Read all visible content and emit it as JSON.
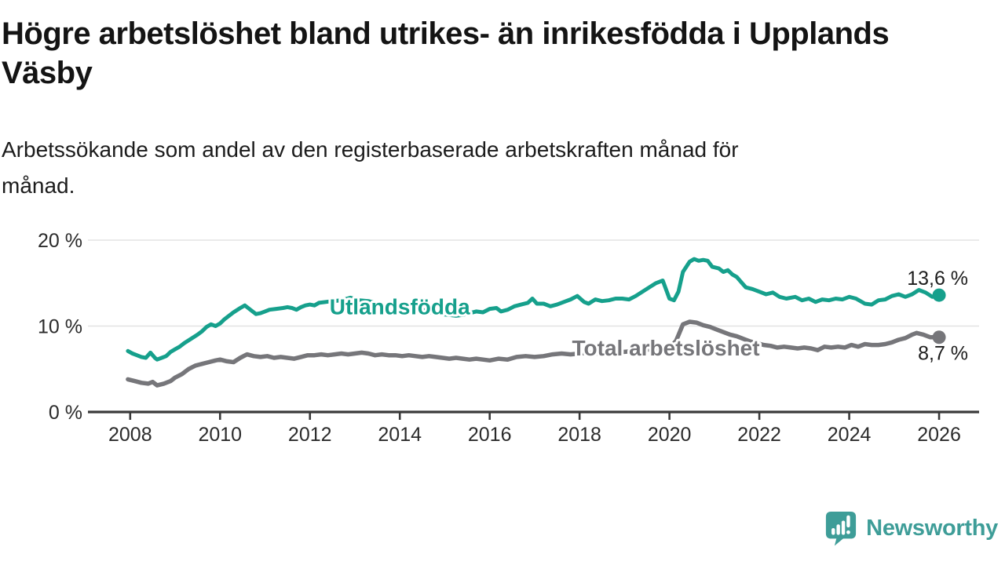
{
  "header": {
    "title": "Högre arbetslöshet bland utrikes- än inrikesfödda i Upplands\nVäsby",
    "subtitle": "Arbetssökande som andel av den registerbaserade arbetskraften månad för\nmånad."
  },
  "footer": {
    "brand": "Newsworthy",
    "brand_icon": "newsworthy-speech-bubble-bar-chart-icon",
    "brand_color": "#3E9D98"
  },
  "chart_data": {
    "type": "line",
    "title": "Högre arbetslöshet bland utrikes- än inrikesfödda i Upplands Väsby",
    "subtitle": "Arbetssökande som andel av den registerbaserade arbetskraften månad för månad.",
    "grid": "horizontal",
    "legend_position": "inline-labels",
    "colors": {
      "gridline": "#e3e3e3",
      "axis": "#3a3a3a",
      "axis_text": "#2b2b2b",
      "end_label_text": "#1d1d1d"
    },
    "x_axis": {
      "range": [
        2007.06,
        2026.89
      ],
      "ticks": [
        {
          "value": 2008,
          "label": "2008"
        },
        {
          "value": 2010,
          "label": "2010"
        },
        {
          "value": 2012,
          "label": "2012"
        },
        {
          "value": 2014,
          "label": "2014"
        },
        {
          "value": 2016,
          "label": "2016"
        },
        {
          "value": 2018,
          "label": "2018"
        },
        {
          "value": 2020,
          "label": "2020"
        },
        {
          "value": 2022,
          "label": "2022"
        },
        {
          "value": 2024,
          "label": "2024"
        },
        {
          "value": 2026,
          "label": "2026"
        }
      ]
    },
    "y_axis": {
      "range": [
        0,
        22.4
      ],
      "unit": "%",
      "ticks": [
        {
          "value": 0,
          "label": "0 %"
        },
        {
          "value": 10,
          "label": "10 %"
        },
        {
          "value": 20,
          "label": "20 %"
        }
      ]
    },
    "series": [
      {
        "name": "Total arbetslöshet",
        "color": "#76767a",
        "line_width": 5.5,
        "label_anchor": {
          "year": 2019.92,
          "value": 7.5
        },
        "end_label": "8,7 %",
        "end_label_side": "below",
        "points": [
          [
            2007.95,
            3.8
          ],
          [
            2008.1,
            3.6
          ],
          [
            2008.25,
            3.4
          ],
          [
            2008.4,
            3.3
          ],
          [
            2008.5,
            3.5
          ],
          [
            2008.6,
            3.1
          ],
          [
            2008.75,
            3.3
          ],
          [
            2008.9,
            3.6
          ],
          [
            2009.0,
            4.0
          ],
          [
            2009.15,
            4.4
          ],
          [
            2009.3,
            5.0
          ],
          [
            2009.45,
            5.4
          ],
          [
            2009.6,
            5.6
          ],
          [
            2009.75,
            5.8
          ],
          [
            2009.9,
            6.0
          ],
          [
            2010.0,
            6.1
          ],
          [
            2010.15,
            5.9
          ],
          [
            2010.3,
            5.8
          ],
          [
            2010.45,
            6.3
          ],
          [
            2010.6,
            6.7
          ],
          [
            2010.75,
            6.5
          ],
          [
            2010.9,
            6.4
          ],
          [
            2011.05,
            6.5
          ],
          [
            2011.2,
            6.3
          ],
          [
            2011.35,
            6.4
          ],
          [
            2011.5,
            6.3
          ],
          [
            2011.65,
            6.2
          ],
          [
            2011.8,
            6.4
          ],
          [
            2011.95,
            6.6
          ],
          [
            2012.1,
            6.6
          ],
          [
            2012.25,
            6.7
          ],
          [
            2012.4,
            6.6
          ],
          [
            2012.55,
            6.7
          ],
          [
            2012.7,
            6.8
          ],
          [
            2012.85,
            6.7
          ],
          [
            2013.0,
            6.8
          ],
          [
            2013.15,
            6.9
          ],
          [
            2013.3,
            6.8
          ],
          [
            2013.45,
            6.6
          ],
          [
            2013.6,
            6.7
          ],
          [
            2013.75,
            6.6
          ],
          [
            2013.9,
            6.6
          ],
          [
            2014.05,
            6.5
          ],
          [
            2014.2,
            6.6
          ],
          [
            2014.35,
            6.5
          ],
          [
            2014.5,
            6.4
          ],
          [
            2014.65,
            6.5
          ],
          [
            2014.8,
            6.4
          ],
          [
            2014.95,
            6.3
          ],
          [
            2015.1,
            6.2
          ],
          [
            2015.25,
            6.3
          ],
          [
            2015.4,
            6.2
          ],
          [
            2015.55,
            6.1
          ],
          [
            2015.7,
            6.2
          ],
          [
            2015.85,
            6.1
          ],
          [
            2016.0,
            6.0
          ],
          [
            2016.2,
            6.2
          ],
          [
            2016.4,
            6.1
          ],
          [
            2016.6,
            6.4
          ],
          [
            2016.8,
            6.5
          ],
          [
            2017.0,
            6.4
          ],
          [
            2017.2,
            6.5
          ],
          [
            2017.4,
            6.7
          ],
          [
            2017.6,
            6.8
          ],
          [
            2017.8,
            6.7
          ],
          [
            2018.0,
            6.8
          ],
          [
            2018.2,
            6.9
          ],
          [
            2018.4,
            6.8
          ],
          [
            2018.6,
            6.9
          ],
          [
            2018.8,
            7.0
          ],
          [
            2019.0,
            7.0
          ],
          [
            2019.2,
            7.1
          ],
          [
            2019.4,
            7.2
          ],
          [
            2019.6,
            7.3
          ],
          [
            2019.8,
            7.3
          ],
          [
            2020.0,
            7.4
          ],
          [
            2020.15,
            8.3
          ],
          [
            2020.3,
            10.2
          ],
          [
            2020.45,
            10.5
          ],
          [
            2020.6,
            10.4
          ],
          [
            2020.75,
            10.1
          ],
          [
            2020.9,
            9.9
          ],
          [
            2021.05,
            9.6
          ],
          [
            2021.2,
            9.3
          ],
          [
            2021.35,
            9.0
          ],
          [
            2021.5,
            8.8
          ],
          [
            2021.65,
            8.5
          ],
          [
            2021.8,
            8.2
          ],
          [
            2021.95,
            8.0
          ],
          [
            2022.1,
            7.8
          ],
          [
            2022.25,
            7.7
          ],
          [
            2022.4,
            7.5
          ],
          [
            2022.55,
            7.6
          ],
          [
            2022.7,
            7.5
          ],
          [
            2022.85,
            7.4
          ],
          [
            2023.0,
            7.5
          ],
          [
            2023.15,
            7.4
          ],
          [
            2023.3,
            7.2
          ],
          [
            2023.45,
            7.6
          ],
          [
            2023.6,
            7.5
          ],
          [
            2023.75,
            7.6
          ],
          [
            2023.9,
            7.5
          ],
          [
            2024.05,
            7.8
          ],
          [
            2024.2,
            7.6
          ],
          [
            2024.35,
            7.9
          ],
          [
            2024.5,
            7.8
          ],
          [
            2024.65,
            7.8
          ],
          [
            2024.8,
            7.9
          ],
          [
            2024.95,
            8.1
          ],
          [
            2025.1,
            8.4
          ],
          [
            2025.25,
            8.6
          ],
          [
            2025.4,
            9.0
          ],
          [
            2025.5,
            9.2
          ],
          [
            2025.65,
            9.0
          ],
          [
            2025.8,
            8.7
          ],
          [
            2026.0,
            8.7
          ]
        ]
      },
      {
        "name": "Utlandsfödda",
        "color": "#16a08c",
        "line_width": 5,
        "label_anchor": {
          "year": 2014.0,
          "value": 12.3
        },
        "end_label": "13,6 %",
        "end_label_side": "above",
        "points": [
          [
            2007.95,
            7.1
          ],
          [
            2008.05,
            6.8
          ],
          [
            2008.15,
            6.6
          ],
          [
            2008.25,
            6.4
          ],
          [
            2008.35,
            6.3
          ],
          [
            2008.45,
            6.9
          ],
          [
            2008.55,
            6.3
          ],
          [
            2008.6,
            6.1
          ],
          [
            2008.7,
            6.3
          ],
          [
            2008.8,
            6.5
          ],
          [
            2008.9,
            7.0
          ],
          [
            2009.0,
            7.3
          ],
          [
            2009.1,
            7.6
          ],
          [
            2009.2,
            8.0
          ],
          [
            2009.35,
            8.5
          ],
          [
            2009.5,
            9.0
          ],
          [
            2009.6,
            9.4
          ],
          [
            2009.7,
            9.9
          ],
          [
            2009.8,
            10.2
          ],
          [
            2009.9,
            10.0
          ],
          [
            2010.0,
            10.3
          ],
          [
            2010.1,
            10.8
          ],
          [
            2010.2,
            11.2
          ],
          [
            2010.3,
            11.6
          ],
          [
            2010.45,
            12.1
          ],
          [
            2010.55,
            12.4
          ],
          [
            2010.7,
            11.8
          ],
          [
            2010.8,
            11.4
          ],
          [
            2010.9,
            11.5
          ],
          [
            2011.0,
            11.7
          ],
          [
            2011.1,
            11.9
          ],
          [
            2011.25,
            12.0
          ],
          [
            2011.4,
            12.1
          ],
          [
            2011.5,
            12.2
          ],
          [
            2011.6,
            12.1
          ],
          [
            2011.7,
            11.9
          ],
          [
            2011.8,
            12.2
          ],
          [
            2011.9,
            12.4
          ],
          [
            2012.0,
            12.5
          ],
          [
            2012.1,
            12.4
          ],
          [
            2012.2,
            12.7
          ],
          [
            2012.35,
            12.8
          ],
          [
            2012.5,
            12.9
          ],
          [
            2012.7,
            13.0
          ],
          [
            2012.9,
            13.3
          ],
          [
            2013.1,
            13.0
          ],
          [
            2013.3,
            12.9
          ],
          [
            2013.5,
            12.6
          ],
          [
            2013.7,
            12.4
          ],
          [
            2013.9,
            12.3
          ],
          [
            2014.1,
            12.2
          ],
          [
            2014.3,
            12.0
          ],
          [
            2014.5,
            11.9
          ],
          [
            2014.7,
            11.6
          ],
          [
            2014.9,
            11.4
          ],
          [
            2015.1,
            11.3
          ],
          [
            2015.25,
            11.2
          ],
          [
            2015.4,
            11.3
          ],
          [
            2015.55,
            11.5
          ],
          [
            2015.7,
            11.7
          ],
          [
            2015.85,
            11.6
          ],
          [
            2016.0,
            12.0
          ],
          [
            2016.15,
            12.1
          ],
          [
            2016.25,
            11.7
          ],
          [
            2016.4,
            11.9
          ],
          [
            2016.55,
            12.3
          ],
          [
            2016.7,
            12.5
          ],
          [
            2016.85,
            12.7
          ],
          [
            2016.95,
            13.2
          ],
          [
            2017.05,
            12.6
          ],
          [
            2017.2,
            12.6
          ],
          [
            2017.35,
            12.3
          ],
          [
            2017.5,
            12.5
          ],
          [
            2017.65,
            12.8
          ],
          [
            2017.8,
            13.1
          ],
          [
            2017.95,
            13.5
          ],
          [
            2018.1,
            12.8
          ],
          [
            2018.2,
            12.6
          ],
          [
            2018.35,
            13.1
          ],
          [
            2018.5,
            12.9
          ],
          [
            2018.65,
            13.0
          ],
          [
            2018.8,
            13.2
          ],
          [
            2018.95,
            13.2
          ],
          [
            2019.1,
            13.1
          ],
          [
            2019.25,
            13.5
          ],
          [
            2019.4,
            14.0
          ],
          [
            2019.55,
            14.5
          ],
          [
            2019.7,
            15.0
          ],
          [
            2019.85,
            15.3
          ],
          [
            2020.0,
            13.2
          ],
          [
            2020.1,
            13.0
          ],
          [
            2020.2,
            14.0
          ],
          [
            2020.3,
            16.3
          ],
          [
            2020.45,
            17.5
          ],
          [
            2020.55,
            17.8
          ],
          [
            2020.65,
            17.6
          ],
          [
            2020.75,
            17.7
          ],
          [
            2020.85,
            17.6
          ],
          [
            2020.95,
            16.9
          ],
          [
            2021.1,
            16.7
          ],
          [
            2021.2,
            16.3
          ],
          [
            2021.3,
            16.5
          ],
          [
            2021.4,
            16.0
          ],
          [
            2021.5,
            15.7
          ],
          [
            2021.6,
            15.1
          ],
          [
            2021.7,
            14.5
          ],
          [
            2021.85,
            14.3
          ],
          [
            2022.0,
            14.0
          ],
          [
            2022.15,
            13.7
          ],
          [
            2022.3,
            13.9
          ],
          [
            2022.45,
            13.4
          ],
          [
            2022.6,
            13.2
          ],
          [
            2022.8,
            13.4
          ],
          [
            2022.95,
            13.0
          ],
          [
            2023.1,
            13.2
          ],
          [
            2023.25,
            12.8
          ],
          [
            2023.4,
            13.1
          ],
          [
            2023.55,
            13.0
          ],
          [
            2023.7,
            13.2
          ],
          [
            2023.85,
            13.1
          ],
          [
            2024.0,
            13.4
          ],
          [
            2024.15,
            13.2
          ],
          [
            2024.35,
            12.6
          ],
          [
            2024.5,
            12.5
          ],
          [
            2024.65,
            13.0
          ],
          [
            2024.8,
            13.1
          ],
          [
            2024.95,
            13.5
          ],
          [
            2025.1,
            13.7
          ],
          [
            2025.25,
            13.4
          ],
          [
            2025.4,
            13.7
          ],
          [
            2025.55,
            14.2
          ],
          [
            2025.7,
            13.9
          ],
          [
            2025.85,
            13.4
          ],
          [
            2026.0,
            13.6
          ]
        ]
      }
    ]
  }
}
